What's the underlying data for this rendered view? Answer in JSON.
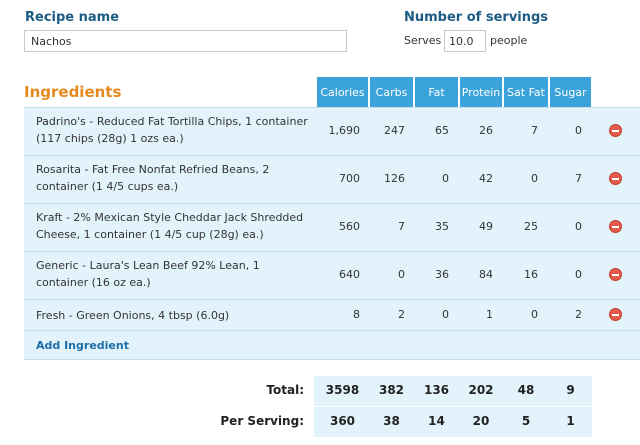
{
  "recipe": {
    "name_label": "Recipe name",
    "name_value": "Nachos"
  },
  "servings": {
    "label": "Number of servings",
    "serves_text": "Serves",
    "value": "10.0",
    "people_text": "people"
  },
  "ingredients": {
    "title": "Ingredients",
    "columns": [
      "Calories",
      "Carbs",
      "Fat",
      "Protein",
      "Sat Fat",
      "Sugar"
    ],
    "rows": [
      {
        "line1": "Padrino's - Reduced Fat Tortilla Chips, 1 container",
        "line2": "(117 chips (28g) 1 ozs ea.)",
        "calories": "1,690",
        "carbs": "247",
        "fat": "65",
        "protein": "26",
        "sat_fat": "7",
        "sugar": "0"
      },
      {
        "line1": "Rosarita - Fat Free Nonfat Refried Beans, 2",
        "line2": "container (1 4/5 cups ea.)",
        "calories": "700",
        "carbs": "126",
        "fat": "0",
        "protein": "42",
        "sat_fat": "0",
        "sugar": "7"
      },
      {
        "line1": "Kraft - 2% Mexican Style Cheddar Jack Shredded",
        "line2": "Cheese, 1 container (1 4/5 cup (28g) ea.)",
        "calories": "560",
        "carbs": "7",
        "fat": "35",
        "protein": "49",
        "sat_fat": "25",
        "sugar": "0"
      },
      {
        "line1": "Generic - Laura's Lean Beef 92% Lean, 1",
        "line2": "container (16 oz ea.)",
        "calories": "640",
        "carbs": "0",
        "fat": "36",
        "protein": "84",
        "sat_fat": "16",
        "sugar": "0"
      },
      {
        "line1": "Fresh - Green Onions, 4 tbsp (6.0g)",
        "line2": "",
        "calories": "8",
        "carbs": "2",
        "fat": "0",
        "protein": "1",
        "sat_fat": "0",
        "sugar": "2"
      }
    ],
    "add_label": "Add Ingredient"
  },
  "totals": {
    "total_label": "Total:",
    "total_values": [
      "3598",
      "382",
      "136",
      "202",
      "48",
      "9"
    ],
    "per_serving_label": "Per Serving:",
    "per_serving_values": [
      "360",
      "38",
      "14",
      "20",
      "5",
      "1"
    ]
  },
  "colors": {
    "accent_blue": "#3aa3d9",
    "title_orange": "#e68a1f",
    "label_blue": "#1c5c85",
    "row_bg": "#e3f3fb",
    "delete_red": "#e25b4c"
  },
  "icons": {
    "delete": "remove-circle-icon"
  }
}
